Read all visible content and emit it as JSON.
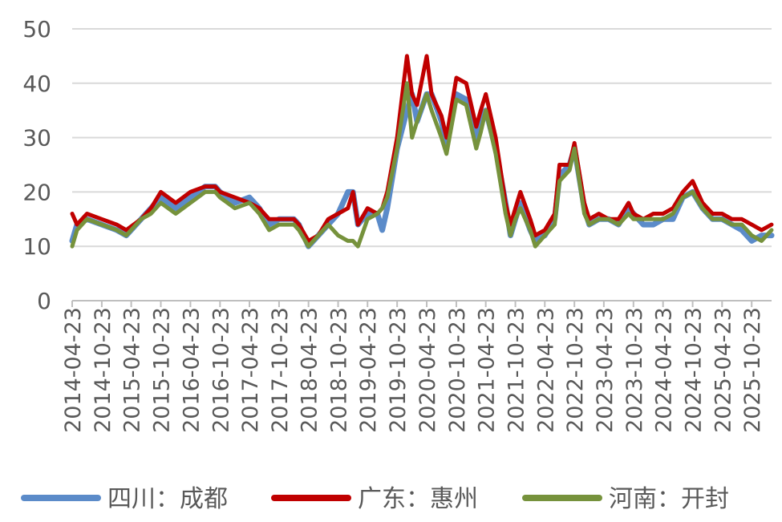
{
  "chart_data": {
    "type": "line",
    "title": "",
    "xlabel": "",
    "ylabel": "",
    "ylim": [
      0,
      50
    ],
    "yticks": [
      0,
      10,
      20,
      30,
      40,
      50
    ],
    "grid": "horizontal",
    "legend_position": "bottom",
    "x_tick_labels": [
      "2014-04-23",
      "2014-10-23",
      "2015-04-23",
      "2015-10-23",
      "2016-04-23",
      "2016-10-23",
      "2017-04-23",
      "2017-10-23",
      "2018-04-23",
      "2018-10-23",
      "2019-04-23",
      "2019-10-23",
      "2020-04-23",
      "2020-10-23",
      "2021-04-23",
      "2021-10-23",
      "2022-04-23",
      "2022-10-23",
      "2023-04-23",
      "2023-10-23",
      "2024-04-23",
      "2024-10-23",
      "2025-04-23",
      "2025-10-23"
    ],
    "x_last": "2026-02-23",
    "series": [
      {
        "name": "四川：成都",
        "color": "#5B8BC9",
        "points": [
          [
            "2014-04-23",
            11
          ],
          [
            "2014-05-23",
            14
          ],
          [
            "2014-07-23",
            15
          ],
          [
            "2014-10-23",
            14
          ],
          [
            "2015-01-23",
            13
          ],
          [
            "2015-03-23",
            12
          ],
          [
            "2015-06-23",
            15
          ],
          [
            "2015-08-23",
            17
          ],
          [
            "2015-10-23",
            19
          ],
          [
            "2016-01-23",
            17
          ],
          [
            "2016-04-23",
            19
          ],
          [
            "2016-07-23",
            21
          ],
          [
            "2016-09-23",
            21
          ],
          [
            "2016-10-23",
            20
          ],
          [
            "2017-01-23",
            18
          ],
          [
            "2017-04-23",
            19
          ],
          [
            "2017-06-23",
            17
          ],
          [
            "2017-08-23",
            14
          ],
          [
            "2017-10-23",
            15
          ],
          [
            "2018-01-23",
            15
          ],
          [
            "2018-02-23",
            14
          ],
          [
            "2018-04-23",
            10
          ],
          [
            "2018-06-23",
            12
          ],
          [
            "2018-08-23",
            14
          ],
          [
            "2018-10-23",
            16
          ],
          [
            "2018-12-23",
            20
          ],
          [
            "2019-01-23",
            20
          ],
          [
            "2019-02-23",
            14
          ],
          [
            "2019-04-23",
            16
          ],
          [
            "2019-06-23",
            16
          ],
          [
            "2019-07-23",
            13
          ],
          [
            "2019-08-23",
            17
          ],
          [
            "2019-10-23",
            28
          ],
          [
            "2019-12-23",
            35
          ],
          [
            "2020-01-23",
            38
          ],
          [
            "2020-02-23",
            33
          ],
          [
            "2020-04-23",
            38
          ],
          [
            "2020-05-23",
            38
          ],
          [
            "2020-07-23",
            33
          ],
          [
            "2020-08-23",
            29
          ],
          [
            "2020-10-23",
            38
          ],
          [
            "2020-12-23",
            37
          ],
          [
            "2021-02-23",
            30
          ],
          [
            "2021-03-23",
            33
          ],
          [
            "2021-04-23",
            35
          ],
          [
            "2021-06-23",
            28
          ],
          [
            "2021-08-23",
            18
          ],
          [
            "2021-09-23",
            12
          ],
          [
            "2021-10-23",
            15
          ],
          [
            "2021-11-23",
            18
          ],
          [
            "2022-01-23",
            13
          ],
          [
            "2022-02-23",
            11
          ],
          [
            "2022-04-23",
            12
          ],
          [
            "2022-06-23",
            15
          ],
          [
            "2022-07-23",
            23
          ],
          [
            "2022-09-23",
            25
          ],
          [
            "2022-10-23",
            28
          ],
          [
            "2022-12-23",
            17
          ],
          [
            "2023-01-23",
            14
          ],
          [
            "2023-03-23",
            15
          ],
          [
            "2023-05-23",
            15
          ],
          [
            "2023-07-23",
            14
          ],
          [
            "2023-09-23",
            17
          ],
          [
            "2023-10-23",
            16
          ],
          [
            "2023-12-23",
            14
          ],
          [
            "2024-02-23",
            14
          ],
          [
            "2024-04-23",
            15
          ],
          [
            "2024-06-23",
            15
          ],
          [
            "2024-08-23",
            19
          ],
          [
            "2024-10-23",
            20
          ],
          [
            "2024-12-23",
            17
          ],
          [
            "2025-02-23",
            15
          ],
          [
            "2025-04-23",
            15
          ],
          [
            "2025-06-23",
            14
          ],
          [
            "2025-08-23",
            13
          ],
          [
            "2025-10-23",
            11
          ],
          [
            "2025-12-23",
            12
          ],
          [
            "2026-02-23",
            12
          ]
        ]
      },
      {
        "name": "广东：惠州",
        "color": "#C00000",
        "points": [
          [
            "2014-04-23",
            16
          ],
          [
            "2014-05-23",
            14
          ],
          [
            "2014-07-23",
            16
          ],
          [
            "2014-10-23",
            15
          ],
          [
            "2015-01-23",
            14
          ],
          [
            "2015-03-23",
            13
          ],
          [
            "2015-06-23",
            15
          ],
          [
            "2015-08-23",
            17
          ],
          [
            "2015-10-23",
            20
          ],
          [
            "2016-01-23",
            18
          ],
          [
            "2016-04-23",
            20
          ],
          [
            "2016-07-23",
            21
          ],
          [
            "2016-09-23",
            21
          ],
          [
            "2016-10-23",
            20
          ],
          [
            "2017-01-23",
            19
          ],
          [
            "2017-04-23",
            18
          ],
          [
            "2017-06-23",
            17
          ],
          [
            "2017-08-23",
            15
          ],
          [
            "2017-10-23",
            15
          ],
          [
            "2018-01-23",
            15
          ],
          [
            "2018-02-23",
            14
          ],
          [
            "2018-04-23",
            11
          ],
          [
            "2018-06-23",
            12
          ],
          [
            "2018-08-23",
            15
          ],
          [
            "2018-10-23",
            16
          ],
          [
            "2018-12-23",
            17
          ],
          [
            "2019-01-23",
            20
          ],
          [
            "2019-02-23",
            14
          ],
          [
            "2019-04-23",
            17
          ],
          [
            "2019-06-23",
            16
          ],
          [
            "2019-07-23",
            17
          ],
          [
            "2019-08-23",
            20
          ],
          [
            "2019-10-23",
            30
          ],
          [
            "2019-12-23",
            45
          ],
          [
            "2020-01-23",
            38
          ],
          [
            "2020-02-23",
            36
          ],
          [
            "2020-04-23",
            45
          ],
          [
            "2020-05-23",
            38
          ],
          [
            "2020-07-23",
            34
          ],
          [
            "2020-08-23",
            30
          ],
          [
            "2020-10-23",
            41
          ],
          [
            "2020-12-23",
            40
          ],
          [
            "2021-02-23",
            32
          ],
          [
            "2021-03-23",
            35
          ],
          [
            "2021-04-23",
            38
          ],
          [
            "2021-06-23",
            30
          ],
          [
            "2021-08-23",
            18
          ],
          [
            "2021-09-23",
            14
          ],
          [
            "2021-10-23",
            17
          ],
          [
            "2021-11-23",
            20
          ],
          [
            "2022-01-23",
            15
          ],
          [
            "2022-02-23",
            12
          ],
          [
            "2022-04-23",
            13
          ],
          [
            "2022-06-23",
            16
          ],
          [
            "2022-07-23",
            25
          ],
          [
            "2022-09-23",
            25
          ],
          [
            "2022-10-23",
            29
          ],
          [
            "2022-12-23",
            18
          ],
          [
            "2023-01-23",
            15
          ],
          [
            "2023-03-23",
            16
          ],
          [
            "2023-05-23",
            15
          ],
          [
            "2023-07-23",
            15
          ],
          [
            "2023-09-23",
            18
          ],
          [
            "2023-10-23",
            16
          ],
          [
            "2023-12-23",
            15
          ],
          [
            "2024-02-23",
            16
          ],
          [
            "2024-04-23",
            16
          ],
          [
            "2024-06-23",
            17
          ],
          [
            "2024-08-23",
            20
          ],
          [
            "2024-10-23",
            22
          ],
          [
            "2024-12-23",
            18
          ],
          [
            "2025-02-23",
            16
          ],
          [
            "2025-04-23",
            16
          ],
          [
            "2025-06-23",
            15
          ],
          [
            "2025-08-23",
            15
          ],
          [
            "2025-10-23",
            14
          ],
          [
            "2025-12-23",
            13
          ],
          [
            "2026-02-23",
            14
          ]
        ]
      },
      {
        "name": "河南：开封",
        "color": "#76923C",
        "points": [
          [
            "2014-04-23",
            10
          ],
          [
            "2014-05-23",
            13
          ],
          [
            "2014-07-23",
            15
          ],
          [
            "2014-10-23",
            14
          ],
          [
            "2015-01-23",
            13
          ],
          [
            "2015-03-23",
            12
          ],
          [
            "2015-06-23",
            15
          ],
          [
            "2015-08-23",
            16
          ],
          [
            "2015-10-23",
            18
          ],
          [
            "2016-01-23",
            16
          ],
          [
            "2016-04-23",
            18
          ],
          [
            "2016-07-23",
            20
          ],
          [
            "2016-09-23",
            20
          ],
          [
            "2016-10-23",
            19
          ],
          [
            "2017-01-23",
            17
          ],
          [
            "2017-04-23",
            18
          ],
          [
            "2017-06-23",
            16
          ],
          [
            "2017-08-23",
            13
          ],
          [
            "2017-10-23",
            14
          ],
          [
            "2018-01-23",
            14
          ],
          [
            "2018-02-23",
            13
          ],
          [
            "2018-04-23",
            10
          ],
          [
            "2018-06-23",
            12
          ],
          [
            "2018-08-23",
            14
          ],
          [
            "2018-10-23",
            12
          ],
          [
            "2018-12-23",
            11
          ],
          [
            "2019-01-23",
            11
          ],
          [
            "2019-02-23",
            10
          ],
          [
            "2019-04-23",
            15
          ],
          [
            "2019-06-23",
            16
          ],
          [
            "2019-07-23",
            17
          ],
          [
            "2019-08-23",
            19
          ],
          [
            "2019-10-23",
            28
          ],
          [
            "2019-12-23",
            40
          ],
          [
            "2020-01-23",
            30
          ],
          [
            "2020-02-23",
            33
          ],
          [
            "2020-04-23",
            38
          ],
          [
            "2020-05-23",
            35
          ],
          [
            "2020-07-23",
            30
          ],
          [
            "2020-08-23",
            27
          ],
          [
            "2020-10-23",
            37
          ],
          [
            "2020-12-23",
            36
          ],
          [
            "2021-02-23",
            28
          ],
          [
            "2021-03-23",
            31
          ],
          [
            "2021-04-23",
            35
          ],
          [
            "2021-06-23",
            27
          ],
          [
            "2021-08-23",
            16
          ],
          [
            "2021-09-23",
            12
          ],
          [
            "2021-10-23",
            15
          ],
          [
            "2021-11-23",
            17
          ],
          [
            "2022-01-23",
            13
          ],
          [
            "2022-02-23",
            10
          ],
          [
            "2022-04-23",
            12
          ],
          [
            "2022-06-23",
            14
          ],
          [
            "2022-07-23",
            22
          ],
          [
            "2022-09-23",
            24
          ],
          [
            "2022-10-23",
            28
          ],
          [
            "2022-12-23",
            16
          ],
          [
            "2023-01-23",
            14
          ],
          [
            "2023-03-23",
            15
          ],
          [
            "2023-05-23",
            15
          ],
          [
            "2023-07-23",
            14
          ],
          [
            "2023-09-23",
            16
          ],
          [
            "2023-10-23",
            15
          ],
          [
            "2023-12-23",
            15
          ],
          [
            "2024-02-23",
            15
          ],
          [
            "2024-04-23",
            15
          ],
          [
            "2024-06-23",
            16
          ],
          [
            "2024-08-23",
            19
          ],
          [
            "2024-10-23",
            20
          ],
          [
            "2024-12-23",
            17
          ],
          [
            "2025-02-23",
            15
          ],
          [
            "2025-04-23",
            15
          ],
          [
            "2025-06-23",
            14
          ],
          [
            "2025-08-23",
            14
          ],
          [
            "2025-10-23",
            12
          ],
          [
            "2025-12-23",
            11
          ],
          [
            "2026-02-23",
            13
          ]
        ]
      }
    ]
  }
}
